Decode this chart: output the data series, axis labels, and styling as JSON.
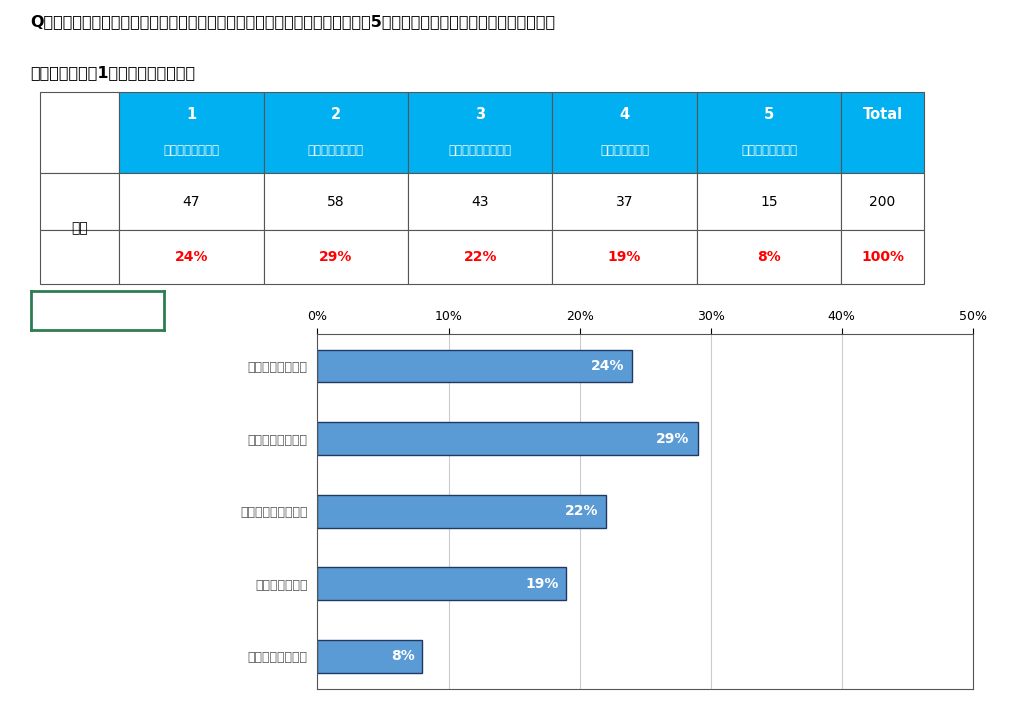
{
  "question_text_line1": "Q：あなたは、当店のサービスについてどの程度満足されていますか？以下の5つの選択肢の中からあなたのお気持ちに",
  "question_text_line2": "一番近いものを1つお選びください。",
  "table_header_nums": [
    "1",
    "2",
    "3",
    "4",
    "5",
    "Total"
  ],
  "table_header_subs": [
    "大変満足している",
    "まあ満足している",
    "どちらとも言えない",
    "少し不満である",
    "とても不満である",
    ""
  ],
  "table_row_label": "全体",
  "table_counts": [
    47,
    58,
    43,
    37,
    15,
    200
  ],
  "table_percents": [
    "24%",
    "29%",
    "22%",
    "19%",
    "8%",
    "100%"
  ],
  "bar_labels": [
    "大変満足している",
    "まあ満足している",
    "どちらとも言えない",
    "少し不満である",
    "とても不満である"
  ],
  "bar_values": [
    24,
    29,
    22,
    19,
    8
  ],
  "bar_color": "#5B9BD5",
  "bar_edge_color": "#1F3864",
  "header_bg_color": "#00B0F0",
  "header_text_color": "#FFFFFF",
  "table_border_color": "#555555",
  "percent_color": "#FF0000",
  "question_font_size": 11.5,
  "bar_font_size": 10,
  "axis_font_size": 9,
  "bar_label_font_size": 9,
  "xlim": [
    0,
    50
  ],
  "xticks": [
    0,
    10,
    20,
    30,
    40,
    50
  ],
  "xtick_labels": [
    "0%",
    "10%",
    "20%",
    "30%",
    "40%",
    "50%"
  ],
  "bg_color": "#FFFFFF",
  "grid_color": "#CCCCCC",
  "box_border_color": "#2E7D52"
}
